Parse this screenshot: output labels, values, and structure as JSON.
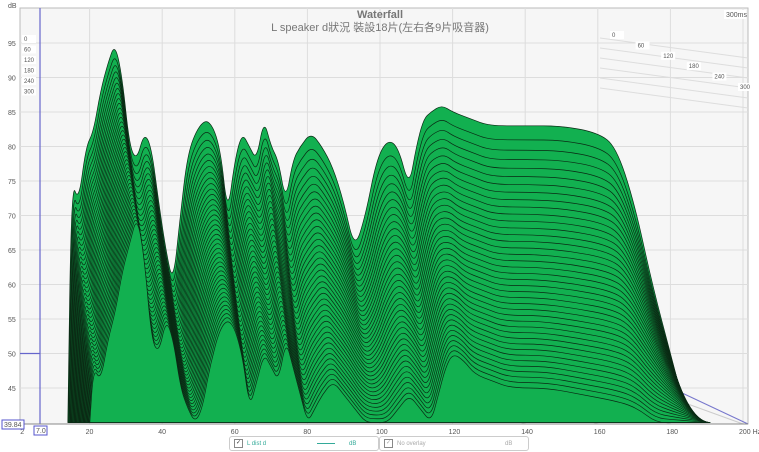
{
  "chart_data": {
    "type": "area",
    "title": "Waterfall",
    "subtitle": "L speaker d狀況  裝設18片(左右各9片吸音器)",
    "ylabel": "dB",
    "xunit": "Hz",
    "xlim": [
      2,
      200
    ],
    "ylim": [
      39.84,
      100
    ],
    "x_ticks": [
      "2",
      "20",
      "40",
      "60",
      "80",
      "100",
      "120",
      "140",
      "160",
      "180",
      "200 Hz"
    ],
    "y_ticks": [
      "45",
      "50",
      "55",
      "60",
      "65",
      "70",
      "75",
      "80",
      "85",
      "90",
      "95"
    ],
    "time_ticks": [
      "0",
      "60",
      "120",
      "180",
      "240",
      "300"
    ],
    "time_unit_label": "300ms",
    "cursor": {
      "x_label": "7.0",
      "y_label": "39.84",
      "level_db": 50
    },
    "grid": true,
    "fill_color": "#12b050",
    "outline_color": "#0a2a14",
    "x": [
      14,
      15,
      17,
      19,
      21,
      23,
      25,
      27,
      29,
      31,
      33,
      35,
      37,
      39,
      41,
      43,
      45,
      47,
      50,
      53,
      56,
      58,
      60,
      62,
      64,
      66,
      68,
      70,
      72,
      74,
      76,
      78,
      81,
      84,
      87,
      90,
      93,
      96,
      99,
      102,
      105,
      108,
      110,
      112,
      114,
      117,
      120,
      125,
      130,
      140,
      150,
      160,
      165,
      170,
      175,
      180,
      185
    ],
    "series": [
      {
        "time_ms": 0,
        "values": [
          40,
          75,
          72,
          80,
          82,
          88,
          92,
          95,
          90,
          80,
          78,
          82,
          80,
          72,
          65,
          60,
          70,
          79,
          83,
          84,
          80,
          70,
          78,
          82,
          80,
          78,
          84,
          80,
          78,
          72,
          78,
          80,
          82,
          80,
          77,
          72,
          65,
          70,
          78,
          81,
          80,
          74,
          80,
          84,
          85,
          86,
          85,
          84,
          83,
          83,
          83,
          82,
          80,
          72,
          60,
          50,
          40
        ]
      },
      {
        "time_ms": 300,
        "values": [
          40,
          48,
          46,
          52,
          56,
          62,
          66,
          70,
          64,
          52,
          50,
          55,
          52,
          45,
          42,
          40,
          42,
          48,
          54,
          55,
          50,
          42,
          46,
          50,
          48,
          46,
          52,
          48,
          44,
          40,
          42,
          44,
          46,
          44,
          42,
          40,
          40,
          40,
          42,
          44,
          42,
          40,
          44,
          48,
          50,
          49,
          47,
          46,
          45,
          45,
          44,
          43,
          42,
          40,
          40,
          40,
          40
        ]
      }
    ]
  },
  "legend": [
    {
      "checked": true,
      "label": "L dist d",
      "unit": "dB"
    },
    {
      "checked": true,
      "label": "No overlay",
      "unit": "dB"
    }
  ]
}
